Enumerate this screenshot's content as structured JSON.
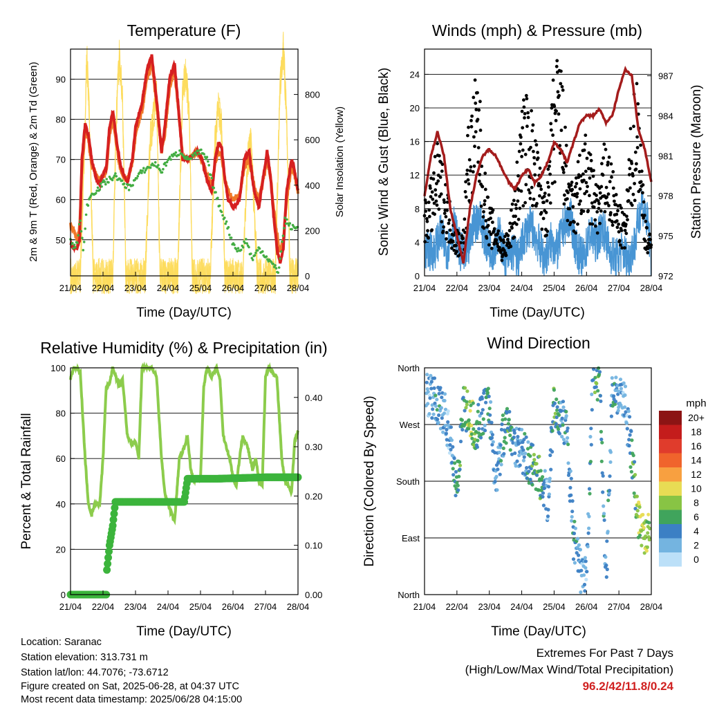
{
  "colors": {
    "red": "#d62020",
    "orange": "#f07828",
    "green": "#43ad43",
    "yellow": "#fddc5c",
    "blue": "#4895d4",
    "black": "#000000",
    "maroon": "#a41c1c",
    "lime": "#8ccc4c",
    "precip": "#3cb43c"
  },
  "time_ticks": [
    "21/04",
    "22/04",
    "23/04",
    "24/04",
    "25/04",
    "26/04",
    "27/04",
    "28/04"
  ],
  "info": {
    "location": "Location: Saranac",
    "elevation": "Station elevation: 313.731 m",
    "latlon": "Station lat/lon: 44.7076; -73.6712",
    "created": "Figure created on Sat, 2025-06-28, at 04:37 UTC",
    "recent": "Most recent data timestamp: 2025/06/28 04:15:00"
  },
  "extremes": {
    "title1": "Extremes For Past 7 Days",
    "title2": "(High/Low/Max Wind/Total Precipitation)",
    "values": "96.2/42/11.8/0.24"
  },
  "chart_data": [
    {
      "type": "line",
      "title": "Temperature (F)",
      "xlabel": "Time (Day/UTC)",
      "ylabel": "2m & 9m T (Red, Orange) & 2m Td (Green)",
      "ylabel_right": "Solar Insolation (Yellow)",
      "xlim": [
        0,
        7
      ],
      "ylim": [
        41,
        97.5
      ],
      "yticks": [
        50,
        60,
        70,
        80,
        90
      ],
      "ylim_right": [
        0,
        1000
      ],
      "yticks_right": [
        0,
        200,
        400,
        600,
        800
      ],
      "grid": true,
      "series": [
        {
          "name": "2m T",
          "color": "red",
          "x": [
            0,
            0.1,
            0.2,
            0.28,
            0.35,
            0.45,
            0.55,
            0.65,
            0.8,
            0.9,
            1.0,
            1.1,
            1.2,
            1.3,
            1.45,
            1.55,
            1.65,
            1.75,
            1.9,
            2.0,
            2.2,
            2.35,
            2.5,
            2.65,
            2.8,
            2.9,
            3.05,
            3.2,
            3.35,
            3.45,
            3.6,
            3.75,
            3.9,
            4.05,
            4.2,
            4.35,
            4.45,
            4.55,
            4.65,
            4.75,
            4.85,
            5.0,
            5.2,
            5.35,
            5.5,
            5.65,
            5.8,
            5.9,
            6.05,
            6.15,
            6.25,
            6.35,
            6.45,
            6.55,
            6.65,
            6.8,
            6.9,
            7.0
          ],
          "y": [
            49,
            48,
            48,
            50,
            70,
            79,
            76,
            70,
            65,
            64,
            66,
            68,
            78,
            82,
            73,
            68,
            66,
            64,
            70,
            78,
            84,
            92,
            96,
            85,
            72,
            78,
            90,
            94,
            80,
            70,
            70,
            71,
            72,
            70,
            65,
            62,
            70,
            74,
            73,
            65,
            60,
            58,
            60,
            70,
            72,
            62,
            58,
            64,
            72,
            66,
            56,
            48,
            44,
            48,
            62,
            70,
            67,
            62
          ]
        },
        {
          "name": "9m T",
          "color": "orange",
          "x": [
            0,
            0.1,
            0.2,
            0.28,
            0.35,
            0.45,
            0.55,
            0.65,
            0.8,
            0.9,
            1.0,
            1.1,
            1.2,
            1.3,
            1.45,
            1.55,
            1.65,
            1.75,
            1.9,
            2.0,
            2.2,
            2.35,
            2.5,
            2.65,
            2.8,
            2.9,
            3.05,
            3.2,
            3.35,
            3.45,
            3.6,
            3.75,
            3.9,
            4.05,
            4.2,
            4.35,
            4.45,
            4.55,
            4.65,
            4.75,
            4.85,
            5.0,
            5.2,
            5.35,
            5.5,
            5.65,
            5.8,
            5.9,
            6.05,
            6.15,
            6.25,
            6.35,
            6.45,
            6.55,
            6.65,
            6.8,
            6.9,
            7.0
          ],
          "y": [
            54,
            52,
            50,
            53,
            68,
            77,
            75,
            69,
            66,
            65,
            66,
            67,
            76,
            80,
            72,
            67,
            66,
            65,
            69,
            76,
            82,
            90,
            94,
            84,
            72,
            76,
            88,
            92,
            80,
            71,
            70,
            71,
            72,
            70,
            66,
            64,
            69,
            72,
            71,
            65,
            62,
            60,
            61,
            68,
            70,
            63,
            60,
            64,
            70,
            66,
            58,
            51,
            47,
            50,
            60,
            68,
            66,
            62
          ]
        },
        {
          "name": "2m Td",
          "color": "green",
          "x": [
            0,
            0.1,
            0.2,
            0.3,
            0.4,
            0.5,
            0.6,
            0.75,
            0.9,
            1.0,
            1.2,
            1.4,
            1.6,
            1.8,
            2.0,
            2.2,
            2.4,
            2.6,
            2.8,
            3.0,
            3.2,
            3.4,
            3.6,
            3.8,
            4.0,
            4.2,
            4.4,
            4.6,
            4.8,
            5.0,
            5.2,
            5.4,
            5.6,
            5.8,
            6.0,
            6.2,
            6.4,
            6.6,
            6.8,
            7.0
          ],
          "y": [
            50,
            48,
            49,
            55,
            47,
            58,
            61,
            62,
            63,
            64,
            65,
            66,
            64,
            63,
            65,
            67,
            68,
            69,
            67,
            70,
            71,
            72,
            70,
            71,
            72,
            70,
            63,
            58,
            54,
            49,
            47,
            50,
            45,
            48,
            46,
            44,
            42,
            55,
            53,
            53
          ]
        },
        {
          "name": "Solar Insolation",
          "color": "yellow",
          "axis": "right",
          "x": [
            0,
            0.3,
            0.42,
            0.5,
            0.58,
            0.7,
            1.0,
            1.3,
            1.4,
            1.5,
            1.6,
            1.7,
            2.0,
            2.3,
            2.45,
            2.55,
            2.65,
            2.75,
            3.0,
            3.3,
            3.45,
            3.55,
            3.65,
            3.75,
            4.0,
            4.3,
            4.45,
            4.55,
            4.65,
            4.75,
            5.0,
            5.3,
            5.45,
            5.55,
            5.65,
            5.75,
            6.0,
            6.3,
            6.45,
            6.55,
            6.65,
            6.75,
            7.0
          ],
          "y": [
            0,
            0,
            520,
            980,
            700,
            0,
            0,
            0,
            650,
            970,
            800,
            0,
            0,
            0,
            600,
            700,
            800,
            0,
            0,
            0,
            820,
            900,
            700,
            0,
            0,
            0,
            600,
            750,
            650,
            0,
            0,
            0,
            500,
            600,
            300,
            0,
            0,
            0,
            850,
            1000,
            700,
            0,
            0
          ]
        }
      ]
    },
    {
      "type": "scatter",
      "title": "Winds (mph) & Pressure (mb)",
      "xlabel": "Time (Day/UTC)",
      "ylabel": "Sonic Wind & Gust (Blue, Black)",
      "ylabel_right": "Station Pressure (Maroon)",
      "xlim": [
        0,
        7
      ],
      "ylim": [
        0,
        27
      ],
      "yticks": [
        0,
        4,
        8,
        12,
        16,
        20,
        24
      ],
      "ylim_right": [
        972,
        989
      ],
      "yticks_right": [
        972,
        975,
        978,
        981,
        984,
        987
      ],
      "grid": true,
      "series": [
        {
          "name": "Sonic Wind",
          "color": "blue",
          "x": [
            0,
            0.3,
            0.5,
            0.7,
            0.9,
            1.1,
            1.3,
            1.5,
            1.7,
            1.9,
            2.1,
            2.3,
            2.5,
            2.7,
            2.9,
            3.1,
            3.3,
            3.5,
            3.7,
            3.9,
            4.1,
            4.3,
            4.5,
            4.7,
            4.9,
            5.1,
            5.3,
            5.5,
            5.7,
            5.9,
            6.1,
            6.3,
            6.5,
            6.7,
            6.9,
            7.0
          ],
          "y": [
            3,
            3,
            5,
            3,
            6,
            3,
            2,
            6,
            7,
            4,
            3,
            5,
            2,
            3,
            2,
            5,
            6,
            4,
            2,
            4,
            3,
            6,
            7,
            3,
            2,
            5,
            4,
            6,
            3,
            2,
            3,
            2,
            4,
            9,
            6,
            2
          ]
        },
        {
          "name": "Gust",
          "color": "black",
          "x": [
            0,
            0.2,
            0.4,
            0.6,
            0.8,
            1.0,
            1.2,
            1.35,
            1.5,
            1.65,
            1.8,
            2.0,
            2.2,
            2.4,
            2.6,
            2.8,
            3.0,
            3.2,
            3.4,
            3.6,
            3.8,
            4.0,
            4.2,
            4.4,
            4.6,
            4.8,
            5.0,
            5.2,
            5.4,
            5.6,
            5.8,
            6.0,
            6.2,
            6.4,
            6.5,
            6.6,
            6.7,
            6.8,
            6.9,
            7.0
          ],
          "y": [
            6,
            8,
            11,
            9,
            6,
            4,
            4,
            13,
            15,
            18,
            10,
            6,
            5,
            3,
            4,
            8,
            14,
            16,
            12,
            9,
            8,
            18,
            19,
            10,
            7,
            11,
            12,
            9,
            8,
            12,
            9,
            6,
            5,
            14,
            16,
            18,
            10,
            6,
            4,
            3
          ]
        },
        {
          "name": "Station Pressure",
          "color": "maroon",
          "axis": "right",
          "x": [
            0,
            0.2,
            0.4,
            0.6,
            0.8,
            1.0,
            1.1,
            1.2,
            1.3,
            1.4,
            1.6,
            1.8,
            2.0,
            2.2,
            2.4,
            2.6,
            2.8,
            3.0,
            3.2,
            3.4,
            3.6,
            3.8,
            4.0,
            4.2,
            4.4,
            4.6,
            4.8,
            5.0,
            5.2,
            5.4,
            5.6,
            5.8,
            6.0,
            6.2,
            6.4,
            6.5,
            6.6,
            6.8,
            7.0
          ],
          "y": [
            978,
            981,
            982.8,
            981,
            977,
            975,
            974,
            973,
            975,
            977,
            979.5,
            981,
            981.5,
            981,
            980,
            979,
            978.5,
            979.5,
            980,
            979,
            979.5,
            980.5,
            982,
            981.5,
            980.5,
            982,
            983.5,
            984,
            984,
            984.5,
            983.5,
            984,
            986,
            987.5,
            987,
            985,
            983,
            981.5,
            979
          ]
        }
      ]
    },
    {
      "type": "line",
      "title": "Relative Humidity (%) & Precipitation (in)",
      "xlabel": "Time (Day/UTC)",
      "ylabel": "Percent & Total Rainfall",
      "xlim": [
        0,
        7
      ],
      "ylim": [
        0,
        100
      ],
      "yticks": [
        0,
        20,
        40,
        60,
        80,
        100
      ],
      "ylim_right": [
        0,
        0.46
      ],
      "yticks_right": [
        "0.00",
        "0.10",
        "0.20",
        "0.30",
        "0.40"
      ],
      "grid": true,
      "series": [
        {
          "name": "Relative Humidity",
          "color": "lime",
          "x": [
            0,
            0.1,
            0.2,
            0.3,
            0.45,
            0.55,
            0.65,
            0.75,
            0.9,
            1.0,
            1.1,
            1.2,
            1.3,
            1.4,
            1.5,
            1.6,
            1.75,
            1.9,
            2.0,
            2.1,
            2.2,
            2.35,
            2.5,
            2.65,
            2.8,
            2.9,
            3.0,
            3.2,
            3.35,
            3.5,
            3.6,
            3.7,
            3.8,
            3.9,
            4.0,
            4.1,
            4.2,
            4.35,
            4.5,
            4.6,
            4.7,
            4.8,
            4.9,
            5.0,
            5.1,
            5.2,
            5.3,
            5.45,
            5.6,
            5.7,
            5.8,
            5.9,
            6.0,
            6.1,
            6.2,
            6.35,
            6.5,
            6.6,
            6.7,
            6.8,
            6.9,
            7.0
          ],
          "y": [
            95,
            100,
            100,
            98,
            60,
            40,
            35,
            40,
            40,
            60,
            92,
            93,
            100,
            96,
            92,
            95,
            70,
            66,
            68,
            60,
            100,
            100,
            100,
            96,
            60,
            45,
            40,
            32,
            60,
            65,
            70,
            55,
            50,
            52,
            51,
            92,
            100,
            96,
            100,
            95,
            70,
            65,
            60,
            52,
            48,
            60,
            70,
            65,
            55,
            60,
            50,
            48,
            96,
            100,
            98,
            96,
            60,
            50,
            48,
            45,
            68,
            72
          ]
        },
        {
          "name": "Precipitation",
          "color": "precip",
          "axis": "right",
          "x": [
            0,
            0.7,
            1.1,
            1.12,
            1.2,
            1.3,
            1.38,
            3.0,
            3.5,
            3.6,
            3.7,
            4.5,
            6.0,
            7.0
          ],
          "y": [
            0,
            0,
            0,
            0.05,
            0.1,
            0.14,
            0.188,
            0.188,
            0.188,
            0.235,
            0.235,
            0.235,
            0.238,
            0.238
          ]
        }
      ]
    },
    {
      "type": "scatter",
      "title": "Wind Direction",
      "xlabel": "Time (Day/UTC)",
      "ylabel": "Direction (Colored By Speed)",
      "xlim": [
        0,
        7
      ],
      "ylim": [
        0,
        360
      ],
      "yticks": [
        "North",
        "East",
        "South",
        "West",
        "North"
      ],
      "grid": true,
      "legend": {
        "title": "mph",
        "labels": [
          "20+",
          "18",
          "16",
          "14",
          "12",
          "10",
          "8",
          "6",
          "4",
          "2",
          "0"
        ],
        "colors": [
          "#8c1414",
          "#c41c1c",
          "#e03c2c",
          "#f0642c",
          "#f8a040",
          "#e8dc54",
          "#88c444",
          "#40a45c",
          "#3c80c4",
          "#74b4e0",
          "#bce0f8"
        ]
      },
      "series": [
        {
          "name": "Wind Direction",
          "x": [
            0.1,
            0.3,
            0.4,
            0.6,
            0.8,
            1.0,
            1.2,
            1.4,
            1.6,
            1.8,
            2.0,
            2.2,
            2.4,
            2.6,
            2.8,
            3.0,
            3.2,
            3.4,
            3.6,
            3.8,
            4.0,
            4.2,
            4.4,
            4.6,
            4.8,
            5.0,
            5.2,
            5.4,
            5.6,
            5.8,
            6.0,
            6.2,
            6.4,
            6.6,
            6.8,
            7.0
          ],
          "y": [
            320,
            310,
            300,
            290,
            250,
            170,
            300,
            280,
            260,
            290,
            300,
            180,
            250,
            270,
            240,
            230,
            210,
            200,
            180,
            150,
            300,
            280,
            260,
            90,
            40,
            20,
            350,
            340,
            10,
            330,
            320,
            300,
            220,
            120,
            100,
            110
          ],
          "speed": [
            2,
            3,
            4,
            3,
            2,
            6,
            5,
            8,
            6,
            4,
            5,
            3,
            4,
            6,
            3,
            3,
            4,
            7,
            5,
            2,
            6,
            4,
            3,
            4,
            3,
            2,
            5,
            6,
            3,
            4,
            3,
            2,
            5,
            8,
            9,
            7
          ]
        }
      ]
    }
  ]
}
